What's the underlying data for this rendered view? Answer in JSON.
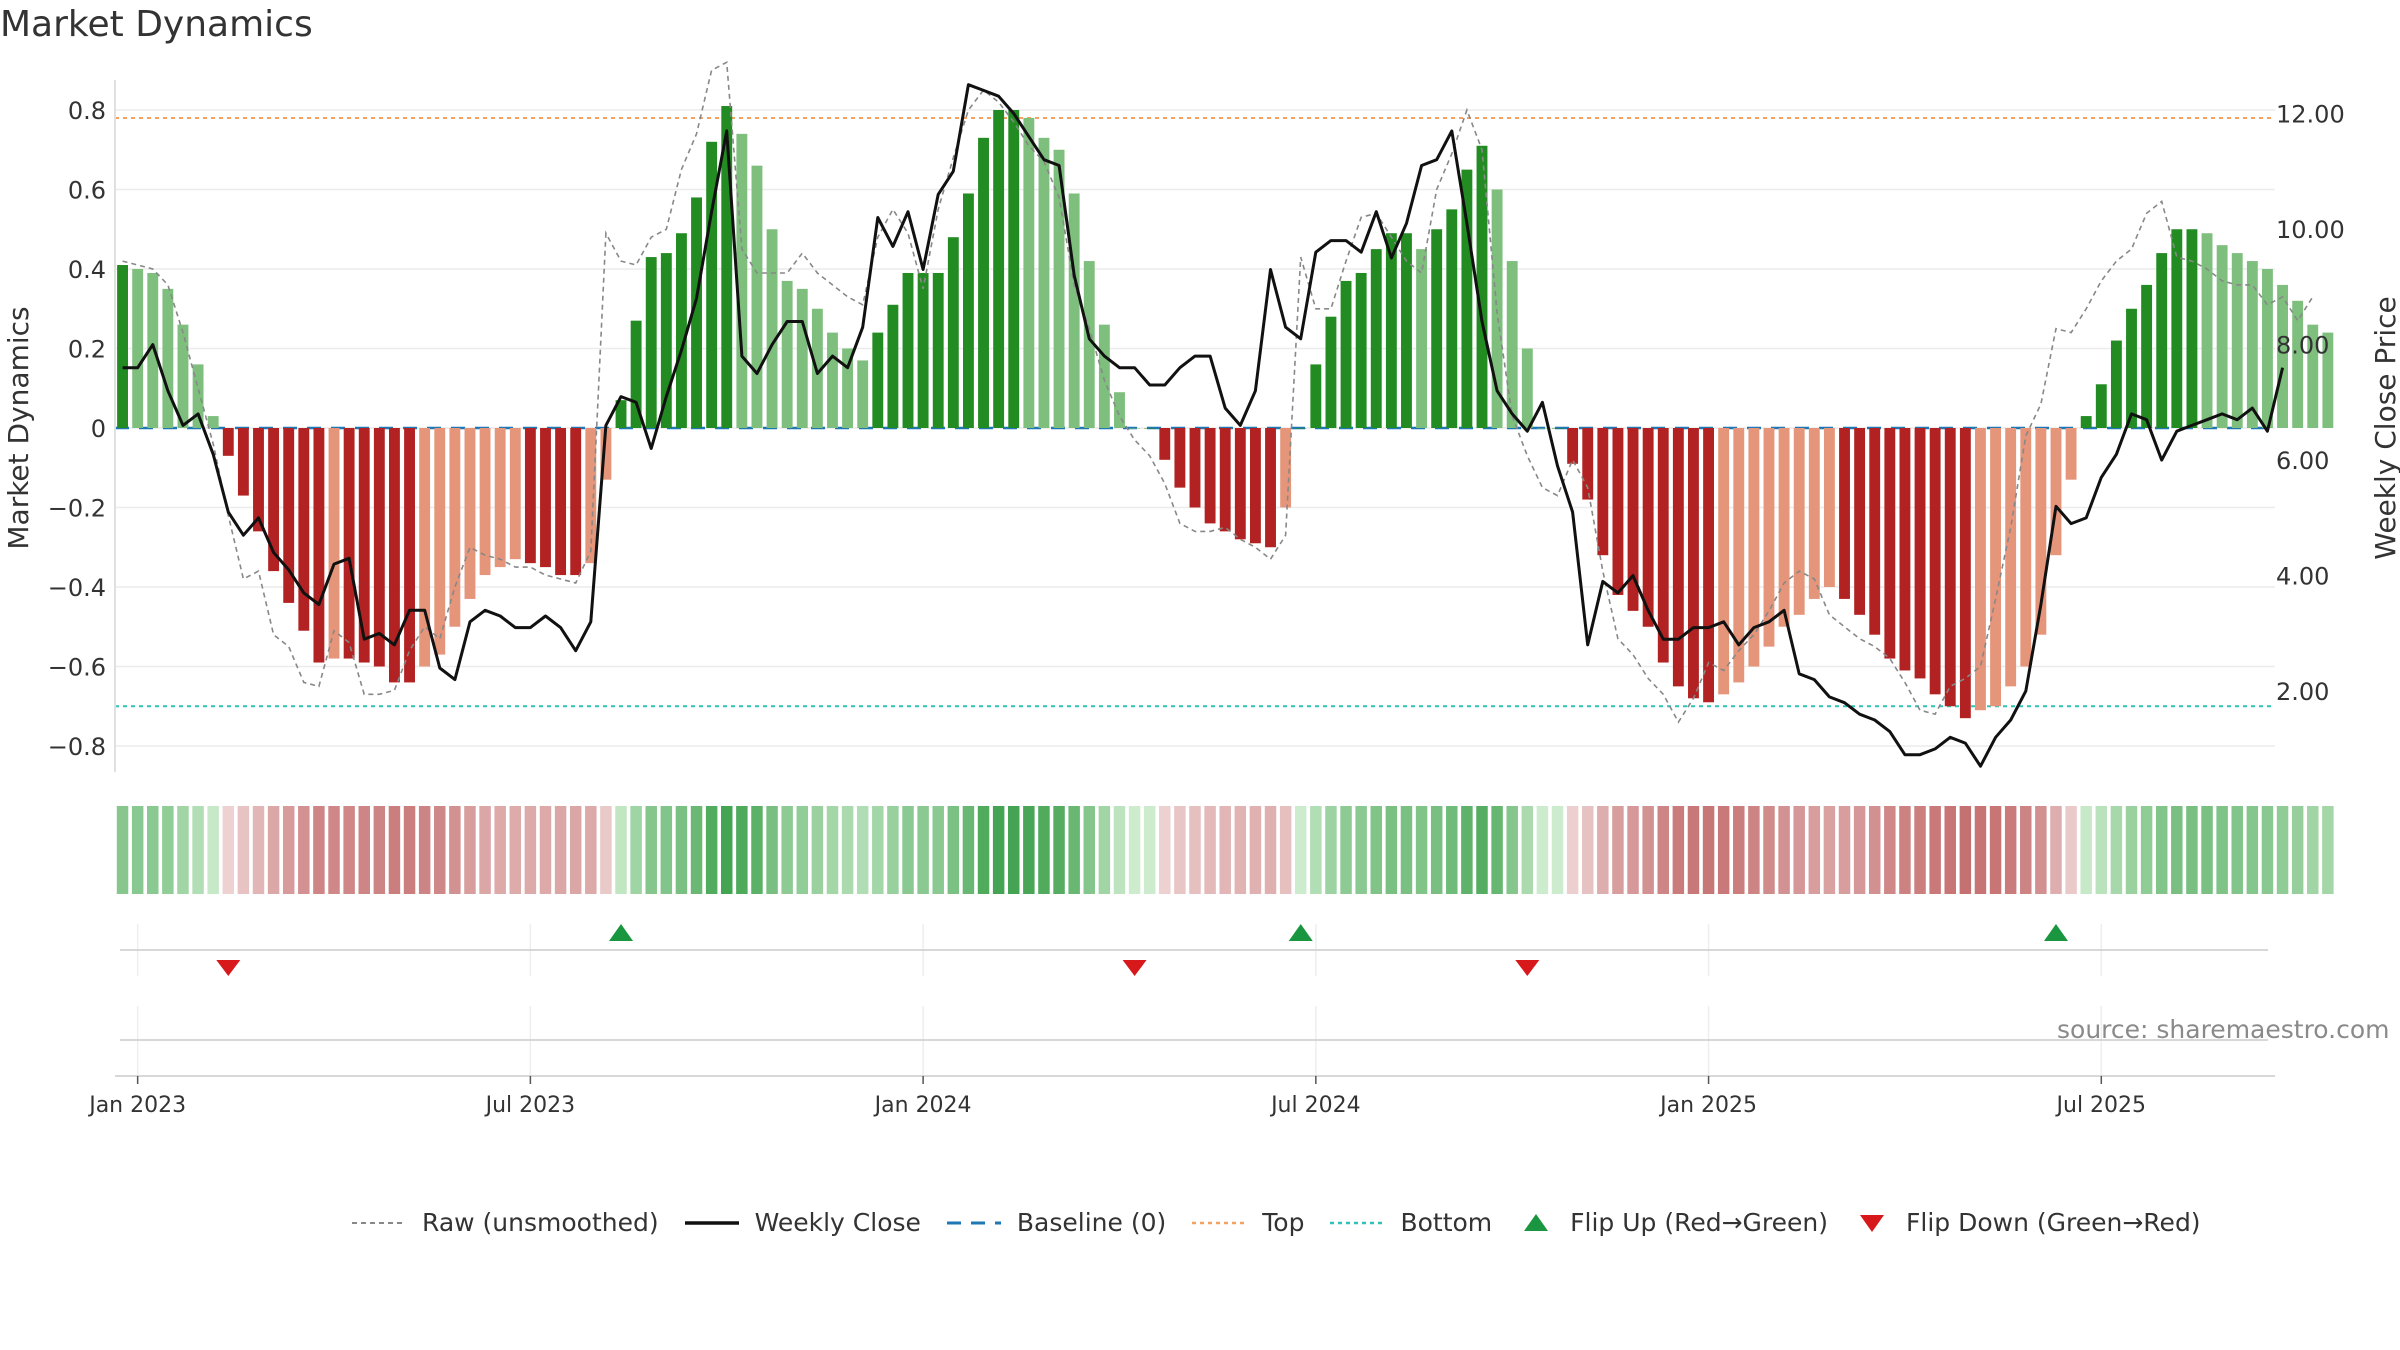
{
  "chart_data": {
    "type": "bar",
    "title": "Market Dynamics",
    "ylabel": "Market Dynamics",
    "y2label": "Weekly Close Price",
    "ylim": [
      -0.88,
      0.88
    ],
    "y2lim": [
      0.6,
      13.1
    ],
    "yticks": [
      0.8,
      0.6,
      0.4,
      0.2,
      0,
      -0.2,
      -0.4,
      -0.6,
      -0.8
    ],
    "ytick_labels": [
      "0.8",
      "0.6",
      "0.4",
      "0.2",
      "0",
      "−0.2",
      "−0.4",
      "−0.6",
      "−0.8"
    ],
    "y2ticks": [
      12,
      10,
      8,
      6,
      4,
      2
    ],
    "y2tick_labels": [
      "12.00",
      "10.00",
      "8.00",
      "6.00",
      "4.00",
      "2.00"
    ],
    "x_start": "2022-12-26",
    "weeks": 143,
    "x_ticks": [
      {
        "label": "Jan 2023",
        "week": 1
      },
      {
        "label": "Jul 2023",
        "week": 27
      },
      {
        "label": "Jan 2024",
        "week": 53
      },
      {
        "label": "Jul 2024",
        "week": 79
      },
      {
        "label": "Jan 2025",
        "week": 105
      },
      {
        "label": "Jul 2025",
        "week": 131
      }
    ],
    "top_level": 0.78,
    "bottom_level": -0.7,
    "baseline": 0,
    "dynamics": [
      0.41,
      0.4,
      0.39,
      0.35,
      0.26,
      0.16,
      0.03,
      -0.07,
      -0.17,
      -0.26,
      -0.36,
      -0.44,
      -0.51,
      -0.59,
      -0.58,
      -0.58,
      -0.59,
      -0.6,
      -0.64,
      -0.64,
      -0.6,
      -0.57,
      -0.5,
      -0.43,
      -0.37,
      -0.35,
      -0.33,
      -0.34,
      -0.35,
      -0.37,
      -0.37,
      -0.34,
      -0.13,
      0.07,
      0.27,
      0.43,
      0.44,
      0.49,
      0.58,
      0.72,
      0.81,
      0.74,
      0.66,
      0.5,
      0.37,
      0.35,
      0.3,
      0.24,
      0.2,
      0.17,
      0.24,
      0.31,
      0.39,
      0.39,
      0.39,
      0.48,
      0.59,
      0.73,
      0.8,
      0.8,
      0.78,
      0.73,
      0.7,
      0.59,
      0.42,
      0.26,
      0.09,
      0,
      0,
      -0.08,
      -0.15,
      -0.2,
      -0.24,
      -0.26,
      -0.28,
      -0.29,
      -0.3,
      -0.2,
      0,
      0.16,
      0.28,
      0.37,
      0.39,
      0.45,
      0.49,
      0.49,
      0.45,
      0.5,
      0.55,
      0.65,
      0.71,
      0.6,
      0.42,
      0.2,
      0,
      0,
      -0.09,
      -0.18,
      -0.32,
      -0.42,
      -0.46,
      -0.5,
      -0.59,
      -0.65,
      -0.68,
      -0.69,
      -0.67,
      -0.64,
      -0.6,
      -0.55,
      -0.5,
      -0.47,
      -0.43,
      -0.4,
      -0.43,
      -0.47,
      -0.52,
      -0.58,
      -0.61,
      -0.63,
      -0.67,
      -0.7,
      -0.73,
      -0.71,
      -0.7,
      -0.65,
      -0.6,
      -0.52,
      -0.32,
      -0.13,
      0.03,
      0.11,
      0.22,
      0.3,
      0.36,
      0.44,
      0.5,
      0.5,
      0.49,
      0.46,
      0.44,
      0.42,
      0.4,
      0.36,
      0.32,
      0.26,
      0.24
    ],
    "raw": [
      0.42,
      0.41,
      0.4,
      0.36,
      0.24,
      0.1,
      -0.04,
      -0.22,
      -0.38,
      -0.36,
      -0.52,
      -0.55,
      -0.64,
      -0.65,
      -0.51,
      -0.54,
      -0.67,
      -0.67,
      -0.66,
      -0.56,
      -0.5,
      -0.53,
      -0.4,
      -0.3,
      -0.32,
      -0.33,
      -0.35,
      -0.35,
      -0.37,
      -0.38,
      -0.39,
      -0.31,
      0.49,
      0.42,
      0.41,
      0.48,
      0.5,
      0.65,
      0.74,
      0.9,
      0.92,
      0.45,
      0.39,
      0.39,
      0.39,
      0.44,
      0.39,
      0.36,
      0.33,
      0.31,
      0.48,
      0.55,
      0.49,
      0.35,
      0.55,
      0.68,
      0.8,
      0.85,
      0.82,
      0.77,
      0.71,
      0.67,
      0.58,
      0.36,
      0.25,
      0.12,
      0.03,
      -0.03,
      -0.07,
      -0.14,
      -0.24,
      -0.26,
      -0.26,
      -0.25,
      -0.28,
      -0.3,
      -0.33,
      -0.27,
      0.43,
      0.3,
      0.3,
      0.42,
      0.53,
      0.54,
      0.48,
      0.42,
      0.39,
      0.6,
      0.69,
      0.8,
      0.7,
      0.29,
      0.03,
      -0.07,
      -0.15,
      -0.17,
      -0.08,
      -0.15,
      -0.36,
      -0.53,
      -0.57,
      -0.63,
      -0.67,
      -0.74,
      -0.68,
      -0.59,
      -0.61,
      -0.56,
      -0.52,
      -0.46,
      -0.39,
      -0.36,
      -0.38,
      -0.47,
      -0.5,
      -0.53,
      -0.55,
      -0.58,
      -0.64,
      -0.71,
      -0.72,
      -0.65,
      -0.63,
      -0.6,
      -0.43,
      -0.25,
      -0.02,
      0.06,
      0.25,
      0.24,
      0.3,
      0.37,
      0.42,
      0.45,
      0.54,
      0.57,
      0.43,
      0.42,
      0.4,
      0.37,
      0.36,
      0.36,
      0.31,
      0.33,
      0.27,
      0.33
    ],
    "close": [
      7.6,
      7.6,
      8,
      7.2,
      6.6,
      6.8,
      6.1,
      5.1,
      4.7,
      5,
      4.4,
      4.1,
      3.7,
      3.5,
      4.2,
      4.3,
      2.9,
      3,
      2.8,
      3.4,
      3.4,
      2.4,
      2.2,
      3.2,
      3.4,
      3.3,
      3.1,
      3.1,
      3.3,
      3.1,
      2.7,
      3.2,
      6.6,
      7.1,
      7,
      6.2,
      7.1,
      7.9,
      8.8,
      10.3,
      11.7,
      7.8,
      7.5,
      8,
      8.4,
      8.4,
      7.5,
      7.8,
      7.6,
      8.3,
      10.2,
      9.7,
      10.3,
      9.3,
      10.6,
      11,
      12.5,
      12.4,
      12.3,
      12,
      11.6,
      11.2,
      11.1,
      9.2,
      8.1,
      7.8,
      7.6,
      7.6,
      7.3,
      7.3,
      7.6,
      7.8,
      7.8,
      6.9,
      6.6,
      7.2,
      9.3,
      8.3,
      8.1,
      9.6,
      9.8,
      9.8,
      9.6,
      10.3,
      9.5,
      10.1,
      11.1,
      11.2,
      11.7,
      10.1,
      8.4,
      7.2,
      6.8,
      6.5,
      7,
      5.9,
      5.1,
      2.8,
      3.9,
      3.7,
      4,
      3.4,
      2.9,
      2.9,
      3.1,
      3.1,
      3.2,
      2.8,
      3.1,
      3.2,
      3.4,
      2.3,
      2.2,
      1.9,
      1.8,
      1.6,
      1.5,
      1.3,
      0.9,
      0.9,
      1,
      1.2,
      1.1,
      0.7,
      1.2,
      1.5,
      2,
      3.5,
      5.2,
      4.9,
      5,
      5.7,
      6.1,
      6.8,
      6.7,
      6,
      6.5,
      6.6,
      6.7,
      6.8,
      6.7,
      6.9,
      6.5,
      7.6
    ],
    "flips": [
      {
        "week": 7,
        "dir": "down"
      },
      {
        "week": 33,
        "dir": "up"
      },
      {
        "week": 67,
        "dir": "down"
      },
      {
        "week": 78,
        "dir": "up"
      },
      {
        "week": 93,
        "dir": "down"
      },
      {
        "week": 128,
        "dir": "up"
      }
    ],
    "legend": [
      {
        "label": "Raw (unsmoothed)",
        "icon": "dashed-gray-line"
      },
      {
        "label": "Weekly Close",
        "icon": "solid-black-line"
      },
      {
        "label": "Baseline (0)",
        "icon": "dashed-blue-line"
      },
      {
        "label": "Top",
        "icon": "dotted-orange-line"
      },
      {
        "label": "Bottom",
        "icon": "dotted-teal-line"
      },
      {
        "label": "Flip Up (Red→Green)",
        "icon": "green-triangle-up"
      },
      {
        "label": "Flip Down (Green→Red)",
        "icon": "red-triangle-down"
      }
    ],
    "source": "source: sharemaestro.com",
    "colors": {
      "strong_green": "#228b22",
      "light_green": "#7ebf7e",
      "strong_red": "#b22222",
      "light_red": "#e5957a",
      "raw": "#888888",
      "close": "#111111",
      "baseline": "#1f77b4",
      "top": "#f4a261",
      "bottom": "#2ec4b6",
      "flip_up": "#1a9641",
      "flip_down": "#d7191c"
    }
  }
}
